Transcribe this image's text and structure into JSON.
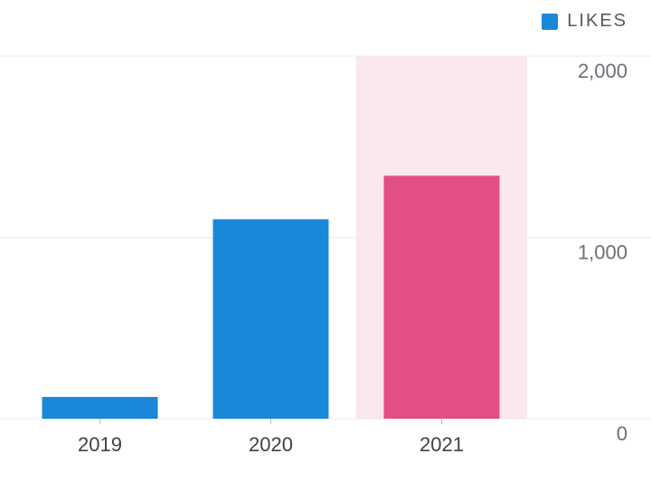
{
  "legend": {
    "label": "LIKES",
    "swatch_color": "#1b87d8"
  },
  "colors": {
    "bar": "#1b87d8",
    "bar_highlight": "#e34e84",
    "highlight_band": "#fbe7ee",
    "grid": "#ececec",
    "tick_text": "#6b7078",
    "x_tick_text": "#3e4248"
  },
  "chart_data": {
    "type": "bar",
    "categories": [
      "2019",
      "2020",
      "2021"
    ],
    "series": [
      {
        "name": "LIKES",
        "values": [
          120,
          1100,
          1340
        ]
      }
    ],
    "highlighted_category": "2021",
    "ylim": [
      0,
      2000
    ],
    "yticks": [
      0,
      1000,
      2000
    ],
    "ytick_labels": [
      "0",
      "1,000",
      "2,000"
    ],
    "y_axis_position": "right",
    "grid": true,
    "legend_position": "top-right"
  }
}
